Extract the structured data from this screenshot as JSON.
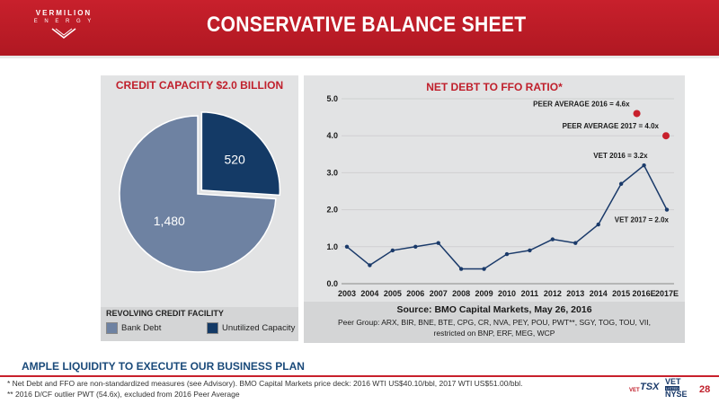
{
  "header": {
    "logo_line1": "VERMILION",
    "logo_line2": "E N E R G Y",
    "title": "CONSERVATIVE BALANCE SHEET",
    "color": "#c8202c"
  },
  "left_panel": {
    "title": "CREDIT CAPACITY $2.0 BILLION",
    "legend_title": "REVOLVING CREDIT FACILITY",
    "legend": [
      {
        "label": "Bank Debt",
        "color": "#6e82a2"
      },
      {
        "label": "Unutilized Capacity",
        "color": "#143a66"
      }
    ]
  },
  "right_panel": {
    "title": "NET DEBT TO FFO RATIO*",
    "source": "Source: BMO Capital Markets, May 26, 2016",
    "peer_line1": "Peer Group: ARX, BIR, BNE, BTE, CPG, CR, NVA, PEY, POU, PWT**, SGY, TOG, TOU, VII,",
    "peer_line2": "restricted on BNP, ERF, MEG, WCP"
  },
  "chart_data": [
    {
      "type": "pie",
      "title": "CREDIT CAPACITY $2.0 BILLION",
      "slices": [
        {
          "label": "Bank Debt",
          "value": 1480,
          "display": "1,480",
          "color": "#6e82a2"
        },
        {
          "label": "Unutilized Capacity",
          "value": 520,
          "display": "520",
          "color": "#143a66"
        }
      ]
    },
    {
      "type": "line",
      "title": "NET DEBT TO FFO RATIO*",
      "categories": [
        "2003",
        "2004",
        "2005",
        "2006",
        "2007",
        "2008",
        "2009",
        "2010",
        "2011",
        "2012",
        "2013",
        "2014",
        "2015",
        "2016E",
        "2017E"
      ],
      "values": [
        1.0,
        0.5,
        0.9,
        1.0,
        1.1,
        0.4,
        0.4,
        0.8,
        0.9,
        1.2,
        1.1,
        1.6,
        2.7,
        3.2,
        2.0
      ],
      "ylim": [
        0,
        5
      ],
      "yticks": [
        "0.0",
        "1.0",
        "2.0",
        "3.0",
        "4.0",
        "5.0"
      ],
      "line_color": "#1a3a6a",
      "peer_points": [
        {
          "label": "PEER AVERAGE 2016 = 4.6x",
          "category": "2016E",
          "value": 4.6,
          "color": "#c8202c"
        },
        {
          "label": "PEER AVERAGE 2017 = 4.0x",
          "category": "2017E",
          "value": 4.0,
          "color": "#c8202c"
        }
      ],
      "annotations": [
        {
          "text": "VET 2016 = 3.2x"
        },
        {
          "text": "VET 2017 = 2.0x"
        }
      ]
    }
  ],
  "footer": {
    "takeaway": "AMPLE LIQUIDITY TO EXECUTE OUR BUSINESS PLAN",
    "footnote1": "*  Net Debt and FFO are non-standardized measures (see Advisory).  BMO Capital Markets price deck: 2016 WTI US$40.10/bbl, 2017 WTI US$51.00/bbl.",
    "footnote2": "** 2016 D/CF outlier PWT (54.6x), excluded from 2016 Peer Average",
    "exchange_vet_small": "VET",
    "exchange_tsx": "TSX",
    "exchange_vet": "VET",
    "exchange_listed": "LISTED",
    "exchange_nyse": "NYSE",
    "page_number": "28"
  }
}
